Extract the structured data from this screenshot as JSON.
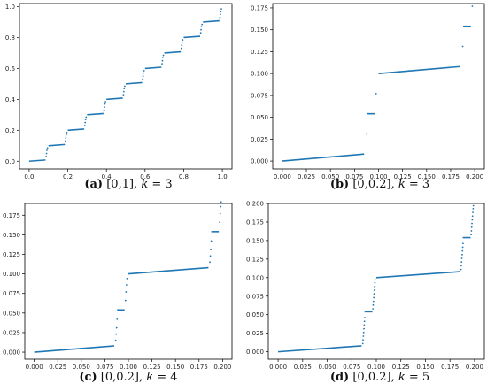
{
  "chart_data": [
    {
      "type": "scatter",
      "caption_letter": "(a)",
      "caption_rest": " [0,1], ",
      "caption_k": "k",
      "caption_eq": " = 3",
      "xlim": [
        -0.05,
        1.05
      ],
      "ylim": [
        -0.05,
        1.02
      ],
      "xticks": [
        {
          "v": 0.0,
          "t": "0.0"
        },
        {
          "v": 0.2,
          "t": "0.2"
        },
        {
          "v": 0.4,
          "t": "0.4"
        },
        {
          "v": 0.6,
          "t": "0.6"
        },
        {
          "v": 0.8,
          "t": "0.8"
        },
        {
          "v": 1.0,
          "t": "1.0"
        }
      ],
      "yticks": [
        {
          "v": 0.0,
          "t": "0.0"
        },
        {
          "v": 0.2,
          "t": "0.2"
        },
        {
          "v": 0.4,
          "t": "0.4"
        },
        {
          "v": 0.6,
          "t": "0.6"
        },
        {
          "v": 0.8,
          "t": "0.8"
        },
        {
          "v": 1.0,
          "t": "1.0"
        }
      ],
      "color": "#1f77b4",
      "segments": [
        {
          "x": [
            0.0,
            0.085
          ],
          "y": [
            0.0,
            0.008
          ]
        },
        {
          "x": [
            0.1,
            0.185
          ],
          "y": [
            0.1,
            0.108
          ]
        },
        {
          "x": [
            0.2,
            0.285
          ],
          "y": [
            0.2,
            0.208
          ]
        },
        {
          "x": [
            0.3,
            0.385
          ],
          "y": [
            0.3,
            0.308
          ]
        },
        {
          "x": [
            0.4,
            0.485
          ],
          "y": [
            0.4,
            0.408
          ]
        },
        {
          "x": [
            0.5,
            0.585
          ],
          "y": [
            0.5,
            0.508
          ]
        },
        {
          "x": [
            0.6,
            0.685
          ],
          "y": [
            0.6,
            0.608
          ]
        },
        {
          "x": [
            0.7,
            0.785
          ],
          "y": [
            0.7,
            0.708
          ]
        },
        {
          "x": [
            0.8,
            0.885
          ],
          "y": [
            0.8,
            0.808
          ]
        },
        {
          "x": [
            0.9,
            0.985
          ],
          "y": [
            0.9,
            0.908
          ]
        }
      ],
      "points": [
        [
          0.088,
          0.03
        ],
        [
          0.09,
          0.05
        ],
        [
          0.092,
          0.07
        ],
        [
          0.095,
          0.085
        ],
        [
          0.188,
          0.13
        ],
        [
          0.19,
          0.15
        ],
        [
          0.192,
          0.17
        ],
        [
          0.195,
          0.185
        ],
        [
          0.288,
          0.23
        ],
        [
          0.29,
          0.25
        ],
        [
          0.292,
          0.27
        ],
        [
          0.295,
          0.285
        ],
        [
          0.388,
          0.33
        ],
        [
          0.39,
          0.35
        ],
        [
          0.392,
          0.37
        ],
        [
          0.395,
          0.385
        ],
        [
          0.488,
          0.43
        ],
        [
          0.49,
          0.45
        ],
        [
          0.492,
          0.47
        ],
        [
          0.495,
          0.485
        ],
        [
          0.588,
          0.53
        ],
        [
          0.59,
          0.55
        ],
        [
          0.592,
          0.57
        ],
        [
          0.595,
          0.585
        ],
        [
          0.688,
          0.63
        ],
        [
          0.69,
          0.65
        ],
        [
          0.692,
          0.67
        ],
        [
          0.695,
          0.685
        ],
        [
          0.788,
          0.73
        ],
        [
          0.79,
          0.75
        ],
        [
          0.792,
          0.77
        ],
        [
          0.795,
          0.785
        ],
        [
          0.888,
          0.83
        ],
        [
          0.89,
          0.85
        ],
        [
          0.892,
          0.87
        ],
        [
          0.895,
          0.885
        ],
        [
          0.988,
          0.93
        ],
        [
          0.99,
          0.95
        ],
        [
          0.992,
          0.97
        ],
        [
          0.995,
          0.985
        ]
      ]
    },
    {
      "type": "scatter",
      "caption_letter": "(b)",
      "caption_rest": " [0,0.2], ",
      "caption_k": "k",
      "caption_eq": " = 3",
      "xlim": [
        -0.01,
        0.21
      ],
      "ylim": [
        -0.009,
        0.18
      ],
      "xticks": [
        {
          "v": 0.0,
          "t": "0.000"
        },
        {
          "v": 0.025,
          "t": "0.025"
        },
        {
          "v": 0.05,
          "t": "0.050"
        },
        {
          "v": 0.075,
          "t": "0.075"
        },
        {
          "v": 0.1,
          "t": "0.100"
        },
        {
          "v": 0.125,
          "t": "0.125"
        },
        {
          "v": 0.15,
          "t": "0.150"
        },
        {
          "v": 0.175,
          "t": "0.175"
        },
        {
          "v": 0.2,
          "t": "0.200"
        }
      ],
      "yticks": [
        {
          "v": 0.0,
          "t": "0.000"
        },
        {
          "v": 0.025,
          "t": "0.025"
        },
        {
          "v": 0.05,
          "t": "0.050"
        },
        {
          "v": 0.075,
          "t": "0.075"
        },
        {
          "v": 0.1,
          "t": "0.100"
        },
        {
          "v": 0.125,
          "t": "0.125"
        },
        {
          "v": 0.15,
          "t": "0.150"
        },
        {
          "v": 0.175,
          "t": "0.175"
        }
      ],
      "color": "#1f77b4",
      "segments": [
        {
          "x": [
            0.0,
            0.085
          ],
          "y": [
            0.0,
            0.008
          ]
        },
        {
          "x": [
            0.088,
            0.096
          ],
          "y": [
            0.054,
            0.054
          ]
        },
        {
          "x": [
            0.1,
            0.185
          ],
          "y": [
            0.1,
            0.108
          ]
        },
        {
          "x": [
            0.188,
            0.196
          ],
          "y": [
            0.154,
            0.154
          ]
        }
      ],
      "points": [
        [
          0.0875,
          0.031
        ],
        [
          0.0975,
          0.077
        ],
        [
          0.1875,
          0.131
        ],
        [
          0.1975,
          0.177
        ]
      ]
    },
    {
      "type": "scatter",
      "caption_letter": "(c)",
      "caption_rest": " [0,0.2], ",
      "caption_k": "k",
      "caption_eq": " = 4",
      "xlim": [
        -0.01,
        0.21
      ],
      "ylim": [
        -0.009,
        0.19
      ],
      "xticks": [
        {
          "v": 0.0,
          "t": "0.000"
        },
        {
          "v": 0.025,
          "t": "0.025"
        },
        {
          "v": 0.05,
          "t": "0.050"
        },
        {
          "v": 0.075,
          "t": "0.075"
        },
        {
          "v": 0.1,
          "t": "0.100"
        },
        {
          "v": 0.125,
          "t": "0.125"
        },
        {
          "v": 0.15,
          "t": "0.150"
        },
        {
          "v": 0.175,
          "t": "0.175"
        },
        {
          "v": 0.2,
          "t": "0.200"
        }
      ],
      "yticks": [
        {
          "v": 0.0,
          "t": "0.000"
        },
        {
          "v": 0.025,
          "t": "0.025"
        },
        {
          "v": 0.05,
          "t": "0.050"
        },
        {
          "v": 0.075,
          "t": "0.075"
        },
        {
          "v": 0.1,
          "t": "0.100"
        },
        {
          "v": 0.125,
          "t": "0.125"
        },
        {
          "v": 0.15,
          "t": "0.150"
        },
        {
          "v": 0.175,
          "t": "0.175"
        }
      ],
      "color": "#1f77b4",
      "segments": [
        {
          "x": [
            0.0,
            0.085
          ],
          "y": [
            0.0,
            0.008
          ]
        },
        {
          "x": [
            0.088,
            0.096
          ],
          "y": [
            0.054,
            0.054
          ]
        },
        {
          "x": [
            0.1,
            0.185
          ],
          "y": [
            0.1,
            0.108
          ]
        },
        {
          "x": [
            0.188,
            0.196
          ],
          "y": [
            0.154,
            0.154
          ]
        }
      ],
      "points": [
        [
          0.0865,
          0.015
        ],
        [
          0.087,
          0.023
        ],
        [
          0.0875,
          0.031
        ],
        [
          0.088,
          0.042
        ],
        [
          0.097,
          0.066
        ],
        [
          0.0975,
          0.077
        ],
        [
          0.098,
          0.086
        ],
        [
          0.0985,
          0.094
        ],
        [
          0.1865,
          0.115
        ],
        [
          0.187,
          0.123
        ],
        [
          0.1875,
          0.131
        ],
        [
          0.188,
          0.142
        ],
        [
          0.197,
          0.166
        ],
        [
          0.1975,
          0.177
        ],
        [
          0.198,
          0.186
        ],
        [
          0.1985,
          0.192
        ]
      ]
    },
    {
      "type": "scatter",
      "caption_letter": "(d)",
      "caption_rest": " [0,0.2], ",
      "caption_k": "k",
      "caption_eq": " = 5",
      "xlim": [
        -0.01,
        0.21
      ],
      "ylim": [
        -0.01,
        0.2
      ],
      "xticks": [
        {
          "v": 0.0,
          "t": "0.000"
        },
        {
          "v": 0.025,
          "t": "0.025"
        },
        {
          "v": 0.05,
          "t": "0.050"
        },
        {
          "v": 0.075,
          "t": "0.075"
        },
        {
          "v": 0.1,
          "t": "0.100"
        },
        {
          "v": 0.125,
          "t": "0.125"
        },
        {
          "v": 0.15,
          "t": "0.150"
        },
        {
          "v": 0.175,
          "t": "0.175"
        },
        {
          "v": 0.2,
          "t": "0.200"
        }
      ],
      "yticks": [
        {
          "v": 0.0,
          "t": "0.000"
        },
        {
          "v": 0.025,
          "t": "0.025"
        },
        {
          "v": 0.05,
          "t": "0.050"
        },
        {
          "v": 0.075,
          "t": "0.075"
        },
        {
          "v": 0.1,
          "t": "0.100"
        },
        {
          "v": 0.125,
          "t": "0.125"
        },
        {
          "v": 0.15,
          "t": "0.150"
        },
        {
          "v": 0.175,
          "t": "0.175"
        },
        {
          "v": 0.2,
          "t": "0.200"
        }
      ],
      "color": "#1f77b4",
      "segments": [
        {
          "x": [
            0.0,
            0.085
          ],
          "y": [
            0.0,
            0.008
          ]
        },
        {
          "x": [
            0.088,
            0.096
          ],
          "y": [
            0.054,
            0.054
          ]
        },
        {
          "x": [
            0.1,
            0.185
          ],
          "y": [
            0.1,
            0.108
          ]
        },
        {
          "x": [
            0.188,
            0.196
          ],
          "y": [
            0.154,
            0.154
          ]
        }
      ],
      "points": [
        [
          0.0862,
          0.011
        ],
        [
          0.0865,
          0.016
        ],
        [
          0.0868,
          0.021
        ],
        [
          0.0871,
          0.026
        ],
        [
          0.0874,
          0.031
        ],
        [
          0.0877,
          0.036
        ],
        [
          0.088,
          0.041
        ],
        [
          0.0883,
          0.046
        ],
        [
          0.0965,
          0.058
        ],
        [
          0.0968,
          0.063
        ],
        [
          0.0971,
          0.068
        ],
        [
          0.0974,
          0.073
        ],
        [
          0.0977,
          0.078
        ],
        [
          0.098,
          0.083
        ],
        [
          0.0983,
          0.088
        ],
        [
          0.0986,
          0.093
        ],
        [
          0.0989,
          0.097
        ],
        [
          0.1862,
          0.111
        ],
        [
          0.1865,
          0.116
        ],
        [
          0.1868,
          0.121
        ],
        [
          0.1871,
          0.126
        ],
        [
          0.1874,
          0.131
        ],
        [
          0.1877,
          0.136
        ],
        [
          0.188,
          0.141
        ],
        [
          0.1883,
          0.146
        ],
        [
          0.1965,
          0.158
        ],
        [
          0.1968,
          0.163
        ],
        [
          0.1971,
          0.168
        ],
        [
          0.1974,
          0.173
        ],
        [
          0.1977,
          0.178
        ],
        [
          0.198,
          0.183
        ],
        [
          0.1983,
          0.188
        ],
        [
          0.1986,
          0.193
        ],
        [
          0.1989,
          0.197
        ]
      ]
    }
  ]
}
